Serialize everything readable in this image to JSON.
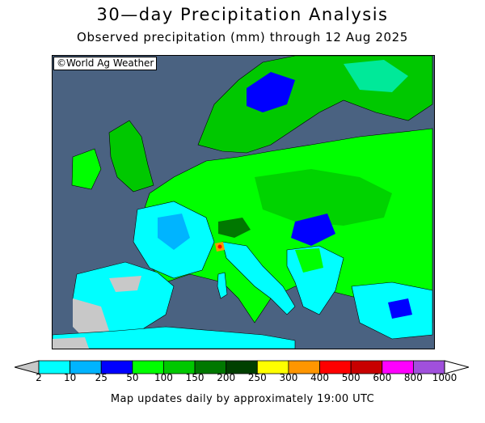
{
  "header": {
    "title": "30—day Precipitation Analysis",
    "subtitle": "Observed precipitation (mm) through 12 Aug 2025"
  },
  "map": {
    "credit": "©World Ag Weather",
    "colors": {
      "ocean": "#4a6281",
      "nodata": "#c8c8c8"
    }
  },
  "legend": {
    "breaks": [
      "2",
      "10",
      "25",
      "50",
      "100",
      "150",
      "200",
      "250",
      "300",
      "400",
      "500",
      "600",
      "800",
      "1000"
    ],
    "colors": [
      "#00ffff",
      "#00b4ff",
      "#0000ff",
      "#00ff00",
      "#00c800",
      "#007800",
      "#004000",
      "#ffff00",
      "#ff9600",
      "#ff0000",
      "#c80000",
      "#ff00ff",
      "#a050dc"
    ],
    "below_color": "#c8c8c8",
    "above_color": "#ffffff"
  },
  "footer": {
    "note": "Map updates daily by approximately 19:00 UTC"
  }
}
